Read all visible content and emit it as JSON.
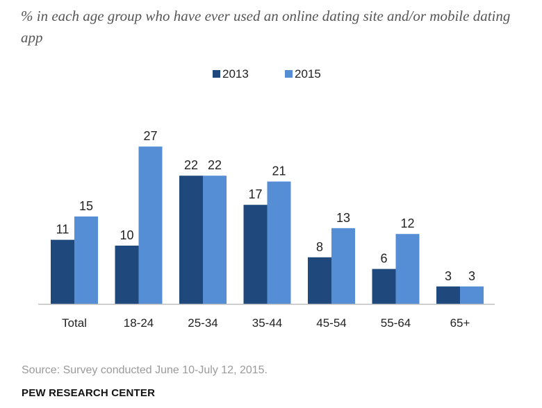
{
  "chart_data": {
    "type": "bar",
    "title": "",
    "subtitle": "% in each age group who have ever used an online dating site and/or mobile dating app",
    "categories": [
      "Total",
      "18-24",
      "25-34",
      "35-44",
      "45-54",
      "55-64",
      "65+"
    ],
    "series": [
      {
        "name": "2013",
        "color": "#1f497d",
        "values": [
          11,
          10,
          22,
          17,
          8,
          6,
          3
        ]
      },
      {
        "name": "2015",
        "color": "#558ed5",
        "values": [
          15,
          27,
          22,
          21,
          13,
          12,
          3
        ]
      }
    ],
    "xlabel": "",
    "ylabel": "",
    "ylim": [
      0,
      30
    ],
    "grid": false,
    "legend_position": "top-center",
    "data_labels": true
  },
  "footer": {
    "source": "Source: Survey conducted June 10-July 12, 2015.",
    "organization": "PEW RESEARCH CENTER"
  }
}
